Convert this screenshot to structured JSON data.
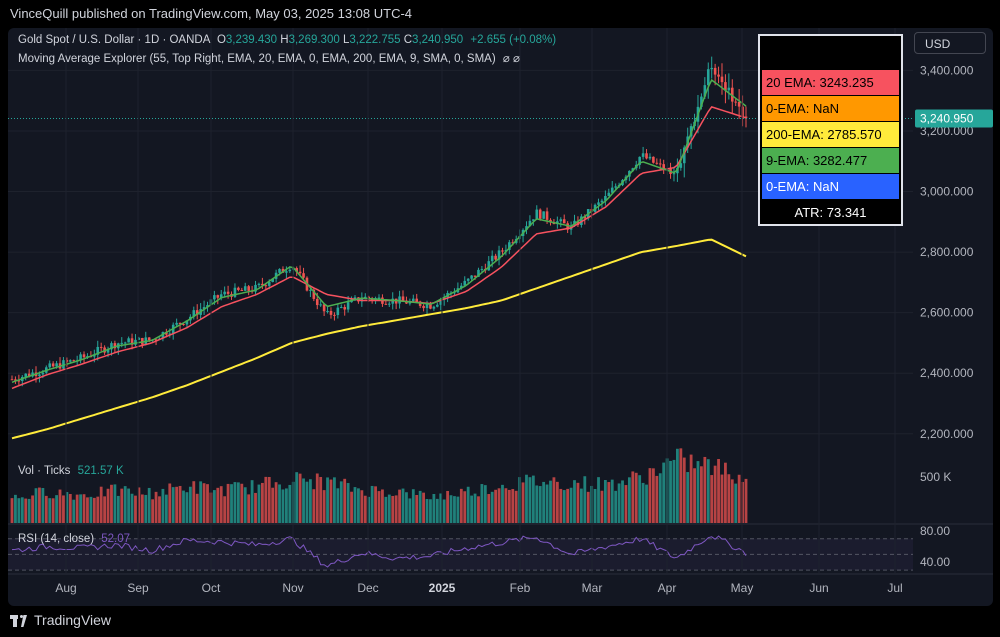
{
  "header": {
    "published_text": "VinceQuill published on TradingView.com, May 03, 2025 13:08 UTC-4"
  },
  "legend": {
    "symbol": "Gold Spot / U.S. Dollar · 1D · OANDA",
    "o_label": "O",
    "o_value": "3,239.430",
    "h_label": "H",
    "h_value": "3,269.300",
    "l_label": "L",
    "l_value": "3,222.755",
    "c_label": "C",
    "c_value": "3,240.950",
    "change": "+2.655 (+0.08%)",
    "indicator": "Moving Average Explorer (55, Top Right, EMA, 20, EMA, 0, EMA, 200, EMA, 9, SMA, 0, SMA)",
    "indicator_icons": "⌀  ⌀"
  },
  "currency_button": "USD",
  "info_box": {
    "rows": [
      {
        "label": "20 EMA: 3243.235",
        "color": "#f7525f",
        "text_color": "#000000"
      },
      {
        "label": "0-EMA: NaN",
        "color": "#ff9800",
        "text_color": "#000000"
      },
      {
        "label": "200-EMA: 2785.570",
        "color": "#ffeb3b",
        "text_color": "#000000"
      },
      {
        "label": "9-EMA: 3282.477",
        "color": "#4caf50",
        "text_color": "#000000"
      },
      {
        "label": "0-EMA: NaN",
        "color": "#2962ff",
        "text_color": "#ffffff"
      }
    ],
    "atr": "ATR: 73.341"
  },
  "volume_legend": {
    "label": "Vol · Ticks",
    "value": "521.57 K"
  },
  "rsi_legend": {
    "label": "RSI (14, close)",
    "value": "52.07"
  },
  "price_axis": {
    "ticks": [
      "3,400.000",
      "3,200.000",
      "3,000.000",
      "2,800.000",
      "2,600.000",
      "2,400.000",
      "2,200.000"
    ],
    "current_price_label": "3,240.950"
  },
  "volume_axis": {
    "tick": "500 K"
  },
  "rsi_axis": {
    "ticks": [
      "80.00",
      "40.00"
    ]
  },
  "time_axis": {
    "labels": [
      "Aug",
      "Sep",
      "Oct",
      "Nov",
      "Dec",
      "2025",
      "Feb",
      "Mar",
      "Apr",
      "May",
      "Jun",
      "Jul"
    ]
  },
  "footer": {
    "brand": "TradingView"
  },
  "colors": {
    "up": "#26a69a",
    "down": "#ef5350",
    "ema20": "#f7525f",
    "ema9": "#4caf50",
    "ema200": "#ffeb3b",
    "rsi": "#7e57c2",
    "background": "#131722",
    "grid": "#1e222d"
  },
  "chart_data": {
    "type": "candlestick",
    "title": "Gold Spot / U.S. Dollar · 1D · OANDA",
    "price_range": [
      2120,
      3540
    ],
    "x_dates": [
      "Jul 1",
      "Jul 15",
      "Aug 1",
      "Aug 15",
      "Sep 1",
      "Sep 15",
      "Oct 1",
      "Oct 15",
      "Nov 1",
      "Nov 15",
      "Dec 1",
      "Dec 15",
      "Jan 1",
      "Jan 15",
      "Feb 1",
      "Feb 15",
      "Mar 1",
      "Mar 15",
      "Apr 1",
      "Apr 10",
      "Apr 22",
      "May 2"
    ],
    "close_anchors": [
      2380,
      2415,
      2450,
      2500,
      2510,
      2580,
      2660,
      2680,
      2760,
      2590,
      2650,
      2640,
      2625,
      2700,
      2800,
      2930,
      2880,
      2980,
      3120,
      3050,
      3420,
      3241
    ],
    "ema20_anchors": [
      2350,
      2395,
      2430,
      2470,
      2500,
      2550,
      2620,
      2660,
      2720,
      2660,
      2640,
      2640,
      2630,
      2670,
      2750,
      2860,
      2880,
      2950,
      3060,
      3080,
      3280,
      3243
    ],
    "ema9_anchors": [
      2370,
      2410,
      2445,
      2490,
      2508,
      2572,
      2650,
      2675,
      2755,
      2620,
      2648,
      2640,
      2628,
      2690,
      2785,
      2910,
      2885,
      2970,
      3100,
      3060,
      3370,
      3282
    ],
    "ema200_anchors": [
      2185,
      2215,
      2250,
      2285,
      2320,
      2360,
      2405,
      2450,
      2500,
      2530,
      2555,
      2575,
      2595,
      2615,
      2640,
      2680,
      2720,
      2760,
      2800,
      2820,
      2842,
      2786
    ],
    "volume_k_range": [
      0,
      760
    ],
    "volume_k_anchors": [
      280,
      360,
      320,
      370,
      340,
      420,
      380,
      420,
      500,
      470,
      380,
      360,
      300,
      360,
      430,
      480,
      460,
      440,
      520,
      720,
      650,
      522
    ],
    "rsi_range": [
      25,
      90
    ],
    "rsi_anchors": [
      55,
      60,
      58,
      62,
      55,
      68,
      66,
      62,
      70,
      35,
      52,
      45,
      48,
      58,
      65,
      72,
      50,
      60,
      70,
      45,
      75,
      52
    ]
  }
}
